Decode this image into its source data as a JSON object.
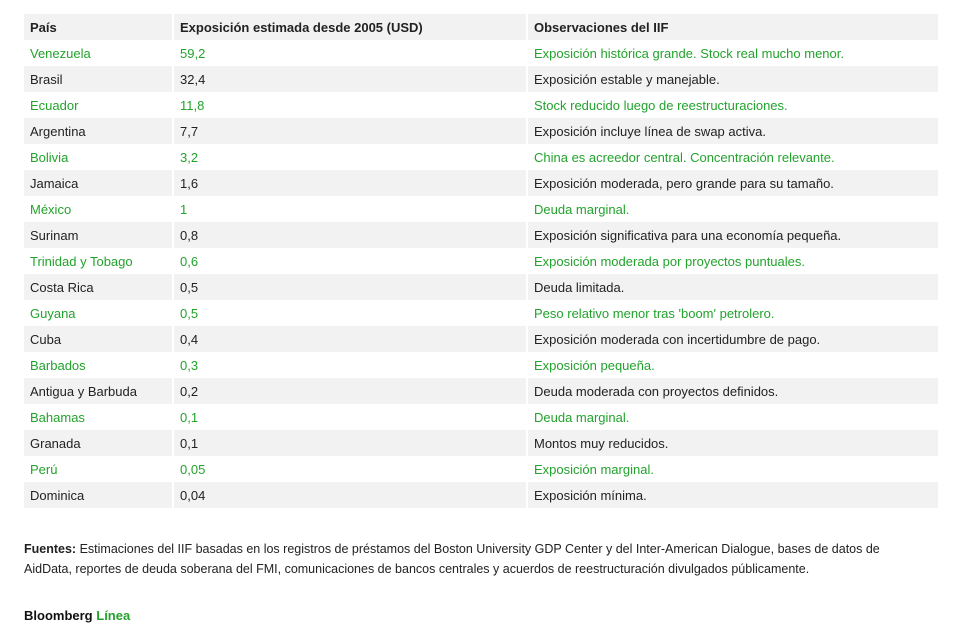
{
  "header": {
    "columns": [
      "País",
      "Exposición estimada desde 2005 (USD)",
      "Observaciones del IIF"
    ]
  },
  "table": {
    "rows": [
      [
        "Venezuela",
        "59,2",
        "Exposición histórica grande. Stock real mucho menor."
      ],
      [
        "Brasil",
        "32,4",
        "Exposición estable y manejable."
      ],
      [
        "Ecuador",
        "11,8",
        "Stock reducido luego de reestructuraciones."
      ],
      [
        "Argentina",
        "7,7",
        "Exposición incluye línea de swap activa."
      ],
      [
        "Bolivia",
        "3,2",
        "China es acreedor central. Concentración relevante."
      ],
      [
        "Jamaica",
        "1,6",
        "Exposición moderada, pero grande para su tamaño."
      ],
      [
        "México",
        "1",
        "Deuda marginal."
      ],
      [
        "Surinam",
        "0,8",
        "Exposición significativa para una economía pequeña."
      ],
      [
        "Trinidad y Tobago",
        "0,6",
        "Exposición moderada por proyectos puntuales."
      ],
      [
        "Costa Rica",
        "0,5",
        "Deuda limitada."
      ],
      [
        "Guyana",
        "0,5",
        "Peso relativo menor tras 'boom' petrolero."
      ],
      [
        "Cuba",
        "0,4",
        "Exposición moderada con incertidumbre de pago."
      ],
      [
        "Barbados",
        "0,3",
        "Exposición pequeña."
      ],
      [
        "Antigua y Barbuda",
        "0,2",
        "Deuda moderada con proyectos definidos."
      ],
      [
        "Bahamas",
        "0,1",
        "Deuda marginal."
      ],
      [
        "Granada",
        "0,1",
        "Montos muy reducidos."
      ],
      [
        "Perú",
        "0,05",
        "Exposición marginal."
      ],
      [
        "Dominica",
        "0,04",
        "Exposición mínima."
      ]
    ]
  },
  "sources": {
    "label": "Fuentes:",
    "text": "Estimaciones del IIF basadas en los registros de préstamos del Boston University GDP Center y del Inter-American Dialogue, bases de datos de AidData, reportes de deuda soberana del FMI, comunicaciones de bancos centrales y acuerdos de reestructuración divulgados públicamente."
  },
  "brand": {
    "name": "Bloomberg",
    "suffix": "Línea"
  }
}
